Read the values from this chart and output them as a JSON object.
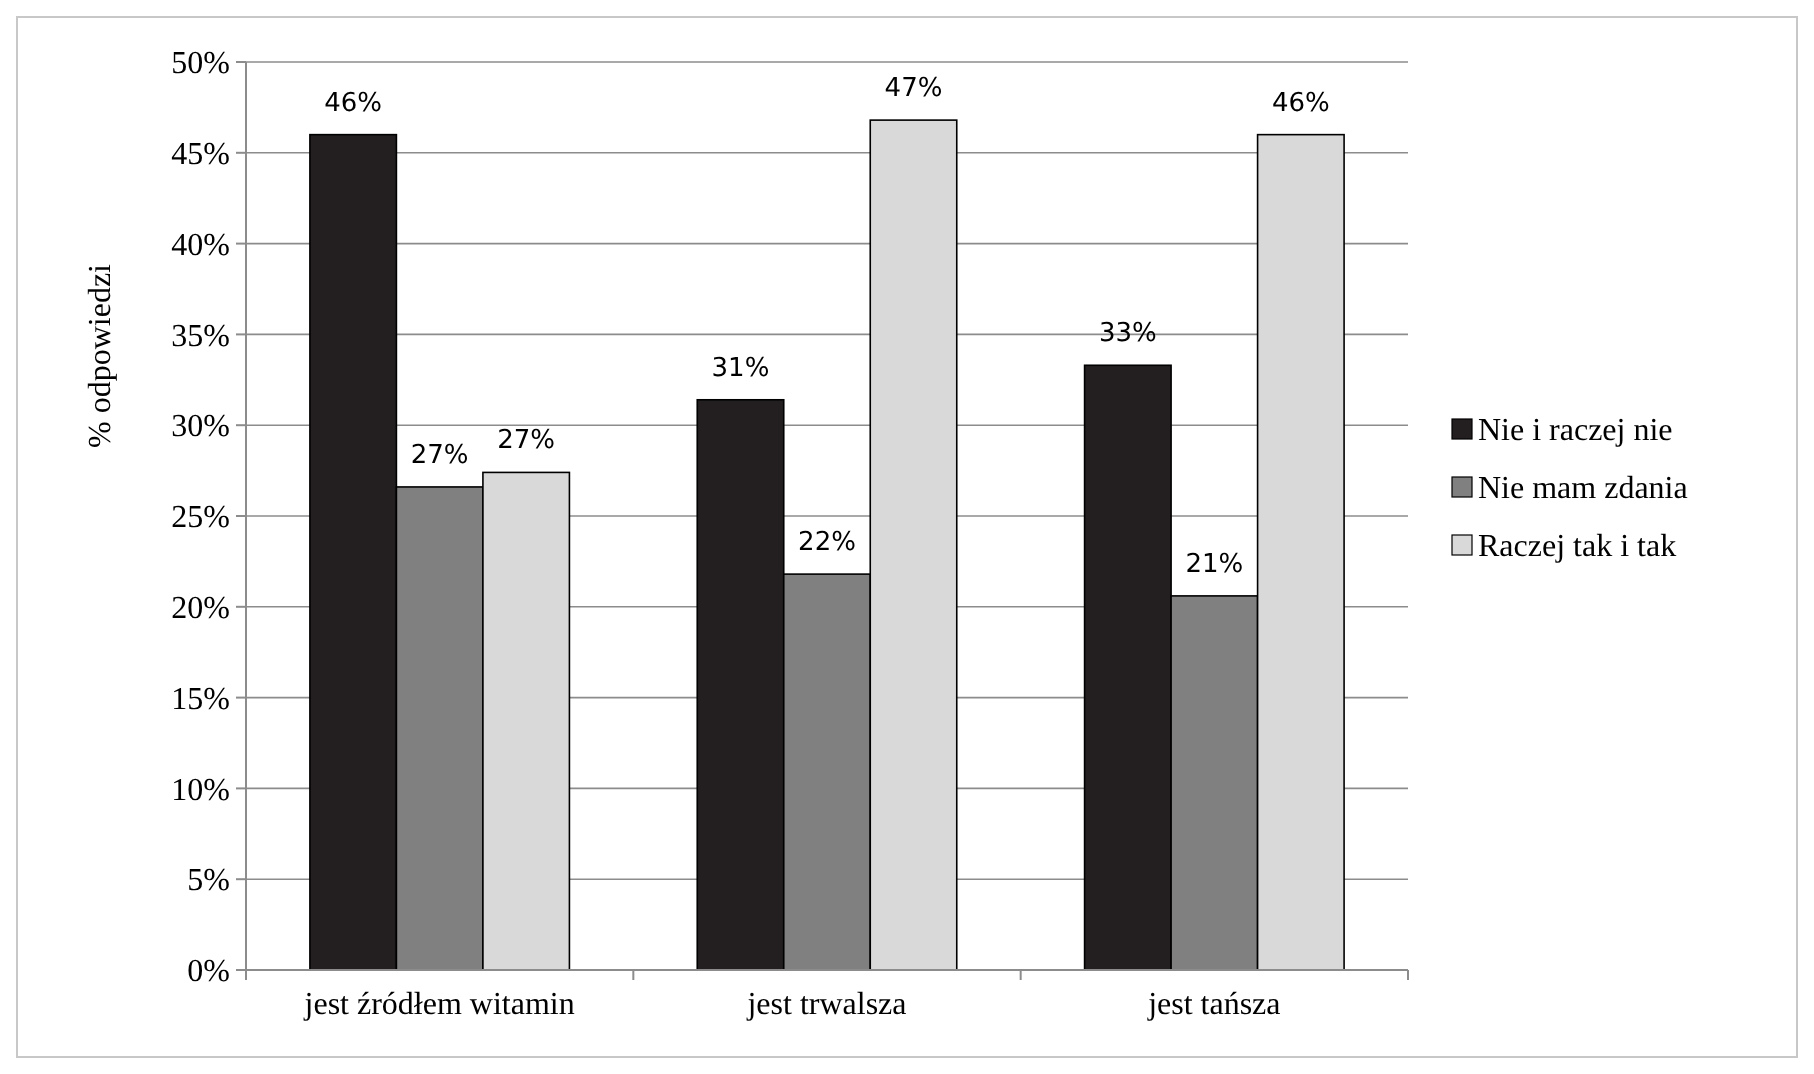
{
  "chart_data": {
    "type": "bar",
    "ylabel": "% odpowiedzi",
    "categories": [
      "jest źródłem witamin",
      "jest trwalsza",
      "jest tańsza"
    ],
    "series": [
      {
        "name": "Nie i raczej nie",
        "color": "#231f20",
        "values": [
          46.0,
          31.4,
          33.3
        ],
        "value_labels": [
          "46%",
          "31%",
          "33%"
        ]
      },
      {
        "name": "Nie mam zdania",
        "color": "#808080",
        "values": [
          26.6,
          21.8,
          20.6
        ],
        "value_labels": [
          "27%",
          "22%",
          "21%"
        ]
      },
      {
        "name": "Raczej tak i tak",
        "color": "#d9d9d9",
        "values": [
          27.4,
          46.8,
          46.0
        ],
        "value_labels": [
          "27%",
          "47%",
          "46%"
        ]
      }
    ],
    "ylim": [
      0,
      50
    ],
    "yticks": [
      {
        "value": 0,
        "label": "0%"
      },
      {
        "value": 5,
        "label": "5%"
      },
      {
        "value": 10,
        "label": "10%"
      },
      {
        "value": 15,
        "label": "15%"
      },
      {
        "value": 20,
        "label": "20%"
      },
      {
        "value": 25,
        "label": "25%"
      },
      {
        "value": 30,
        "label": "30%"
      },
      {
        "value": 35,
        "label": "35%"
      },
      {
        "value": 40,
        "label": "40%"
      },
      {
        "value": 45,
        "label": "45%"
      },
      {
        "value": 50,
        "label": "50%"
      }
    ],
    "grid": "y",
    "legend": "right"
  }
}
